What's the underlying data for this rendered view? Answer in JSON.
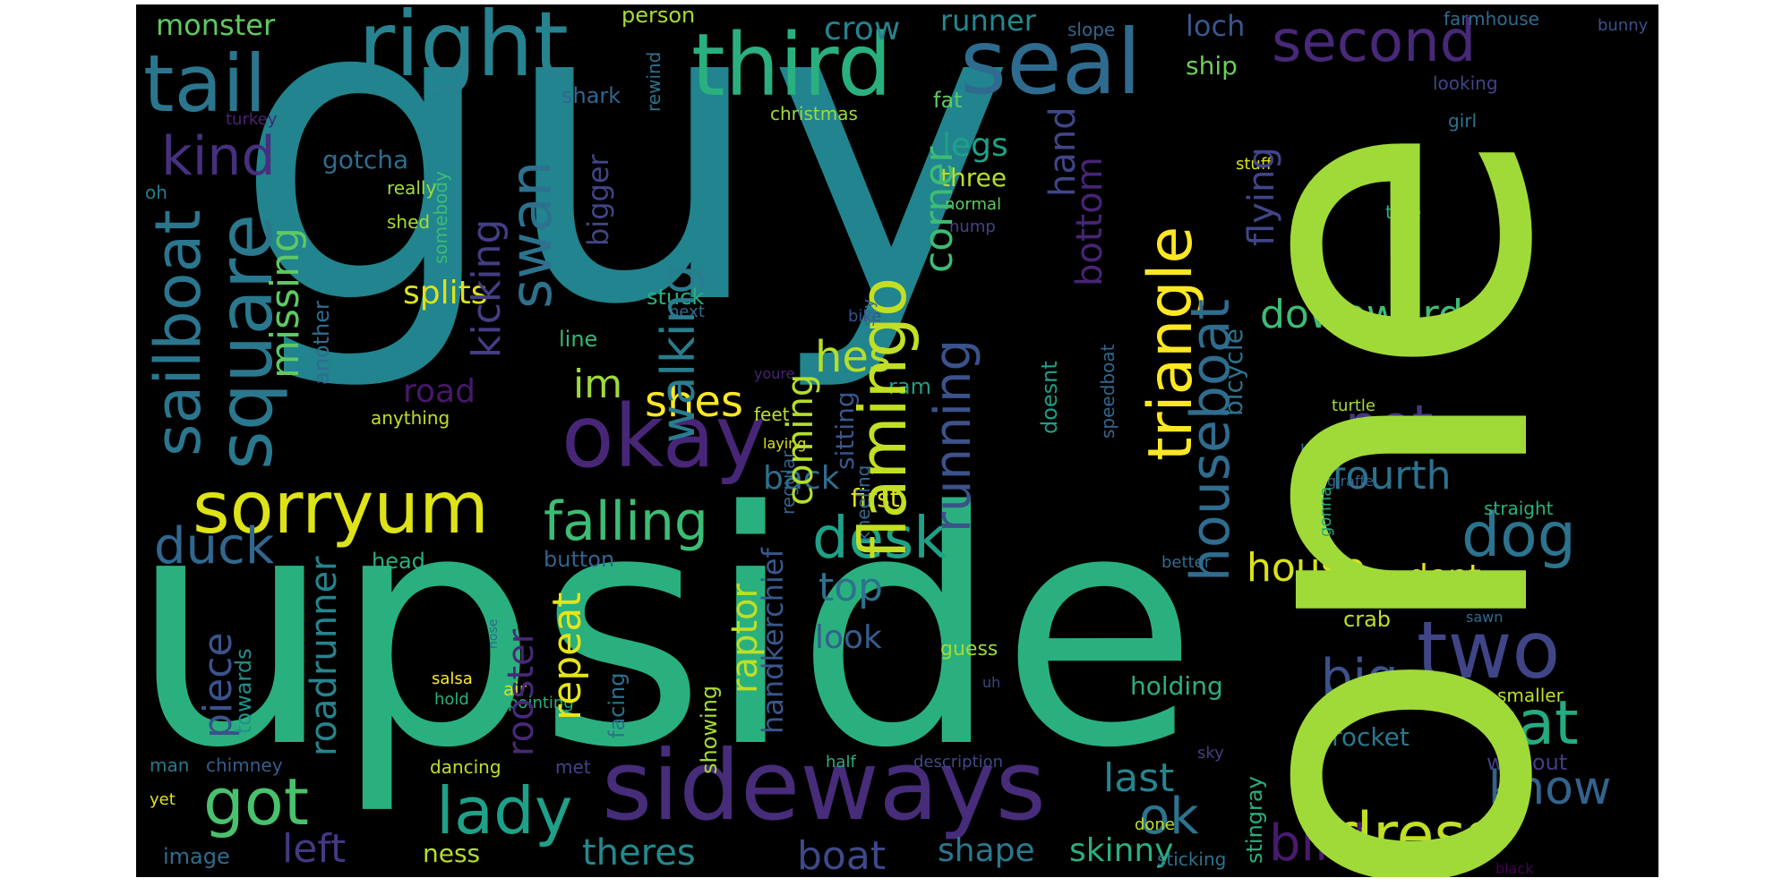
{
  "wordcloud": {
    "background": "#000000",
    "words": [
      {
        "text": "guy",
        "color": "#21848e"
      },
      {
        "text": "one",
        "color": "#a0da39"
      },
      {
        "text": "upside",
        "color": "#2ab07f"
      },
      {
        "text": "sideways",
        "color": "#472c7a"
      },
      {
        "text": "right",
        "color": "#26838f"
      },
      {
        "text": "third",
        "color": "#2ab07f"
      },
      {
        "text": "seal",
        "color": "#2f6b8e"
      },
      {
        "text": "tail",
        "color": "#2a768e"
      },
      {
        "text": "okay",
        "color": "#482677"
      },
      {
        "text": "sorryum",
        "color": "#dde318"
      },
      {
        "text": "falling",
        "color": "#3dbc74"
      },
      {
        "text": "desk",
        "color": "#1fa187"
      },
      {
        "text": "two",
        "color": "#404588"
      },
      {
        "text": "cat",
        "color": "#25ab82"
      },
      {
        "text": "dog",
        "color": "#2c738e"
      },
      {
        "text": "lady",
        "color": "#1fa088"
      },
      {
        "text": "got",
        "color": "#4ac16d"
      },
      {
        "text": "dress",
        "color": "#c2df23"
      },
      {
        "text": "second",
        "color": "#482878"
      },
      {
        "text": "kind",
        "color": "#46307e"
      },
      {
        "text": "duck",
        "color": "#31678e"
      },
      {
        "text": "ok",
        "color": "#2b748e"
      },
      {
        "text": "big",
        "color": "#3b528b"
      },
      {
        "text": "pot",
        "color": "#453781"
      },
      {
        "text": "bird",
        "color": "#481a6c"
      },
      {
        "text": "know",
        "color": "#33638d"
      },
      {
        "text": "house",
        "color": "#d8e219"
      },
      {
        "text": "downward",
        "color": "#3dbc74"
      },
      {
        "text": "fourth",
        "color": "#2c728e"
      },
      {
        "text": "shes",
        "color": "#fde725"
      },
      {
        "text": "im",
        "color": "#9fda3a"
      },
      {
        "text": "hes",
        "color": "#b5de2b"
      },
      {
        "text": "last",
        "color": "#25848e"
      },
      {
        "text": "left",
        "color": "#453882"
      },
      {
        "text": "boat",
        "color": "#3e4989"
      },
      {
        "text": "theres",
        "color": "#23898e"
      },
      {
        "text": "shape",
        "color": "#2a788e"
      },
      {
        "text": "skinny",
        "color": "#2ab07f"
      },
      {
        "text": "top",
        "color": "#2c728e"
      },
      {
        "text": "look",
        "color": "#355e8d"
      },
      {
        "text": "back",
        "color": "#2e6e8e"
      },
      {
        "text": "dont",
        "color": "#e5e419"
      },
      {
        "text": "splits",
        "color": "#dde318"
      },
      {
        "text": "road",
        "color": "#48186a"
      },
      {
        "text": "monster",
        "color": "#5ec962"
      },
      {
        "text": "gotcha",
        "color": "#2f6c8e"
      },
      {
        "text": "crow",
        "color": "#26828e"
      },
      {
        "text": "runner",
        "color": "#23898e"
      },
      {
        "text": "loch",
        "color": "#39568c"
      },
      {
        "text": "person",
        "color": "#a8db34"
      },
      {
        "text": "ship",
        "color": "#6ccd5a"
      },
      {
        "text": "legs",
        "color": "#1fa187"
      },
      {
        "text": "three",
        "color": "#b5de2b"
      },
      {
        "text": "shark",
        "color": "#31678e"
      },
      {
        "text": "christmas",
        "color": "#9fda3a"
      },
      {
        "text": "rewind",
        "color": "#2c728e"
      },
      {
        "text": "fat",
        "color": "#5ec962"
      },
      {
        "text": "farmhouse",
        "color": "#2f6c8e"
      },
      {
        "text": "looking",
        "color": "#404588"
      },
      {
        "text": "bunny",
        "color": "#3b528b"
      },
      {
        "text": "slope",
        "color": "#32658e"
      },
      {
        "text": "girl",
        "color": "#2c738e"
      },
      {
        "text": "turkey",
        "color": "#482475"
      },
      {
        "text": "really",
        "color": "#a0da39"
      },
      {
        "text": "shed",
        "color": "#a8db34"
      },
      {
        "text": "oh",
        "color": "#287d8e"
      },
      {
        "text": "somebody",
        "color": "#3dbc74"
      },
      {
        "text": "normal",
        "color": "#5ec962"
      },
      {
        "text": "hump",
        "color": "#414487"
      },
      {
        "text": "stuff",
        "color": "#d8e219"
      },
      {
        "text": "doesnt",
        "color": "#1f9e89"
      },
      {
        "text": "tree",
        "color": "#2ab07f"
      },
      {
        "text": "stuck",
        "color": "#2ab07f"
      },
      {
        "text": "next",
        "color": "#2f6c8e"
      },
      {
        "text": "say",
        "color": "#2f6c8e"
      },
      {
        "text": "bike",
        "color": "#3b528b"
      },
      {
        "text": "gonna",
        "color": "#25ab82"
      },
      {
        "text": "line",
        "color": "#35b779"
      },
      {
        "text": "ram",
        "color": "#1f9e89"
      },
      {
        "text": "youre",
        "color": "#482475"
      },
      {
        "text": "anything",
        "color": "#c2df23"
      },
      {
        "text": "feet",
        "color": "#bddf26"
      },
      {
        "text": "laying",
        "color": "#dde318"
      },
      {
        "text": "turtle",
        "color": "#a8db34"
      },
      {
        "text": "first",
        "color": "#dde318"
      },
      {
        "text": "head",
        "color": "#2ab07f"
      },
      {
        "text": "button",
        "color": "#33638d"
      },
      {
        "text": "towards",
        "color": "#21918c"
      },
      {
        "text": "salsa",
        "color": "#fde725"
      },
      {
        "text": "hold",
        "color": "#2ab07f"
      },
      {
        "text": "air",
        "color": "#d8e219"
      },
      {
        "text": "pointing",
        "color": "#2ab07f"
      },
      {
        "text": "guess",
        "color": "#9fda3a"
      },
      {
        "text": "uh",
        "color": "#414487"
      },
      {
        "text": "better",
        "color": "#2f6c8e"
      },
      {
        "text": "sawn",
        "color": "#2f6c8e"
      },
      {
        "text": "holding",
        "color": "#2ab07f"
      },
      {
        "text": "rocket",
        "color": "#2a788e"
      },
      {
        "text": "crab",
        "color": "#c2df23"
      },
      {
        "text": "straight",
        "color": "#2ab07f"
      },
      {
        "text": "smaller",
        "color": "#bddf26"
      },
      {
        "text": "without",
        "color": "#433e85"
      },
      {
        "text": "man",
        "color": "#2a788e"
      },
      {
        "text": "chimney",
        "color": "#355e8d"
      },
      {
        "text": "dancing",
        "color": "#bddf26"
      },
      {
        "text": "met",
        "color": "#414487"
      },
      {
        "text": "half",
        "color": "#2ab07f"
      },
      {
        "text": "description",
        "color": "#3e4989"
      },
      {
        "text": "sky",
        "color": "#433e85"
      },
      {
        "text": "yet",
        "color": "#dde318"
      },
      {
        "text": "image",
        "color": "#2f6c8e"
      },
      {
        "text": "ness",
        "color": "#b5de2b"
      },
      {
        "text": "done",
        "color": "#bddf26"
      },
      {
        "text": "sticking",
        "color": "#2c738e"
      },
      {
        "text": "black",
        "color": "#440154"
      },
      {
        "text": "blob",
        "color": "#2c728e"
      },
      {
        "text": "giraffe",
        "color": "#33638d"
      },
      {
        "text": "sailboat",
        "color": "#2a768e"
      },
      {
        "text": "square",
        "color": "#2a788e"
      },
      {
        "text": "piece",
        "color": "#3b528b"
      },
      {
        "text": "missing",
        "color": "#5ec962"
      },
      {
        "text": "another",
        "color": "#2f6c8e"
      },
      {
        "text": "roadrunner",
        "color": "#25848e"
      },
      {
        "text": "kicking",
        "color": "#433e85"
      },
      {
        "text": "swan",
        "color": "#2c728e"
      },
      {
        "text": "bigger",
        "color": "#414487"
      },
      {
        "text": "rooster",
        "color": "#482878"
      },
      {
        "text": "repeat",
        "color": "#e5e419"
      },
      {
        "text": "facing",
        "color": "#2c728e"
      },
      {
        "text": "walking",
        "color": "#287d8e"
      },
      {
        "text": "showing",
        "color": "#a8db34"
      },
      {
        "text": "raptor",
        "color": "#bddf26"
      },
      {
        "text": "regular",
        "color": "#33638d"
      },
      {
        "text": "handkerchief",
        "color": "#39568c"
      },
      {
        "text": "coming",
        "color": "#b5de2b"
      },
      {
        "text": "sitting",
        "color": "#39568c"
      },
      {
        "text": "kneeling",
        "color": "#2f6c8e"
      },
      {
        "text": "flamingo",
        "color": "#c2df23"
      },
      {
        "text": "corner",
        "color": "#3dbc74"
      },
      {
        "text": "running",
        "color": "#3b528b"
      },
      {
        "text": "hand",
        "color": "#404588"
      },
      {
        "text": "bottom",
        "color": "#482475"
      },
      {
        "text": "triangle",
        "color": "#fde725"
      },
      {
        "text": "houseboat",
        "color": "#2f6c8e"
      },
      {
        "text": "flying",
        "color": "#404588"
      },
      {
        "text": "bicycle",
        "color": "#2c728e"
      },
      {
        "text": "speedboat",
        "color": "#31678e"
      },
      {
        "text": "stingray",
        "color": "#2ab07f"
      },
      {
        "text": "nose",
        "color": "#31678e"
      }
    ]
  }
}
